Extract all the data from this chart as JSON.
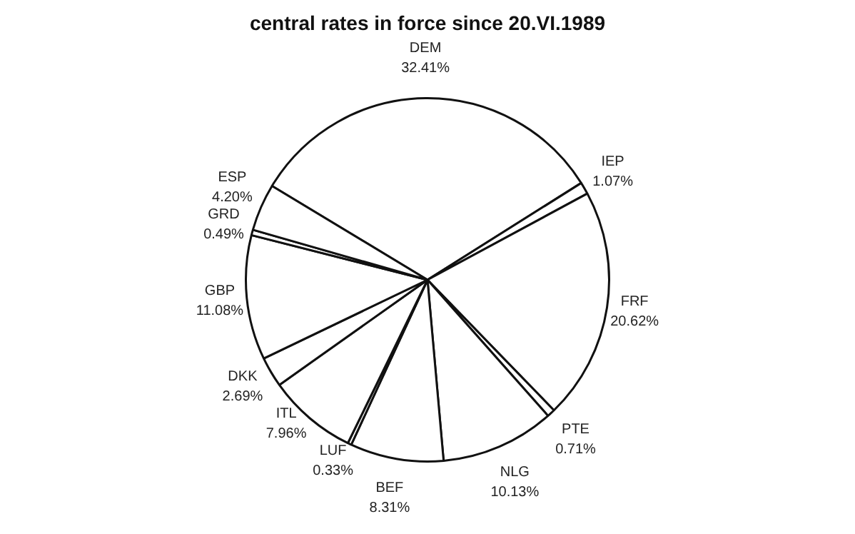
{
  "chart_data": {
    "type": "pie",
    "title": "central rates in force since 20.VI.1989",
    "categories": [
      "DEM",
      "IEP",
      "FRF",
      "PTE",
      "NLG",
      "BEF",
      "LUF",
      "ITL",
      "DKK",
      "GBP",
      "GRD",
      "ESP"
    ],
    "values": [
      32.41,
      1.07,
      20.62,
      0.71,
      10.13,
      8.31,
      0.33,
      7.96,
      2.69,
      11.08,
      0.49,
      4.2
    ],
    "value_labels": [
      "32.41%",
      "1.07%",
      "20.62%",
      "0.71%",
      "10.13%",
      "8.31%",
      "0.33%",
      "7.96%",
      "2.69%",
      "11.08%",
      "0.49%",
      "4.20%"
    ],
    "colors": [
      "#ffffff",
      "#ffffff",
      "#ffffff",
      "#ffffff",
      "#ffffff",
      "#ffffff",
      "#ffffff",
      "#ffffff",
      "#ffffff",
      "#ffffff",
      "#ffffff",
      "#ffffff"
    ],
    "legend": false
  }
}
